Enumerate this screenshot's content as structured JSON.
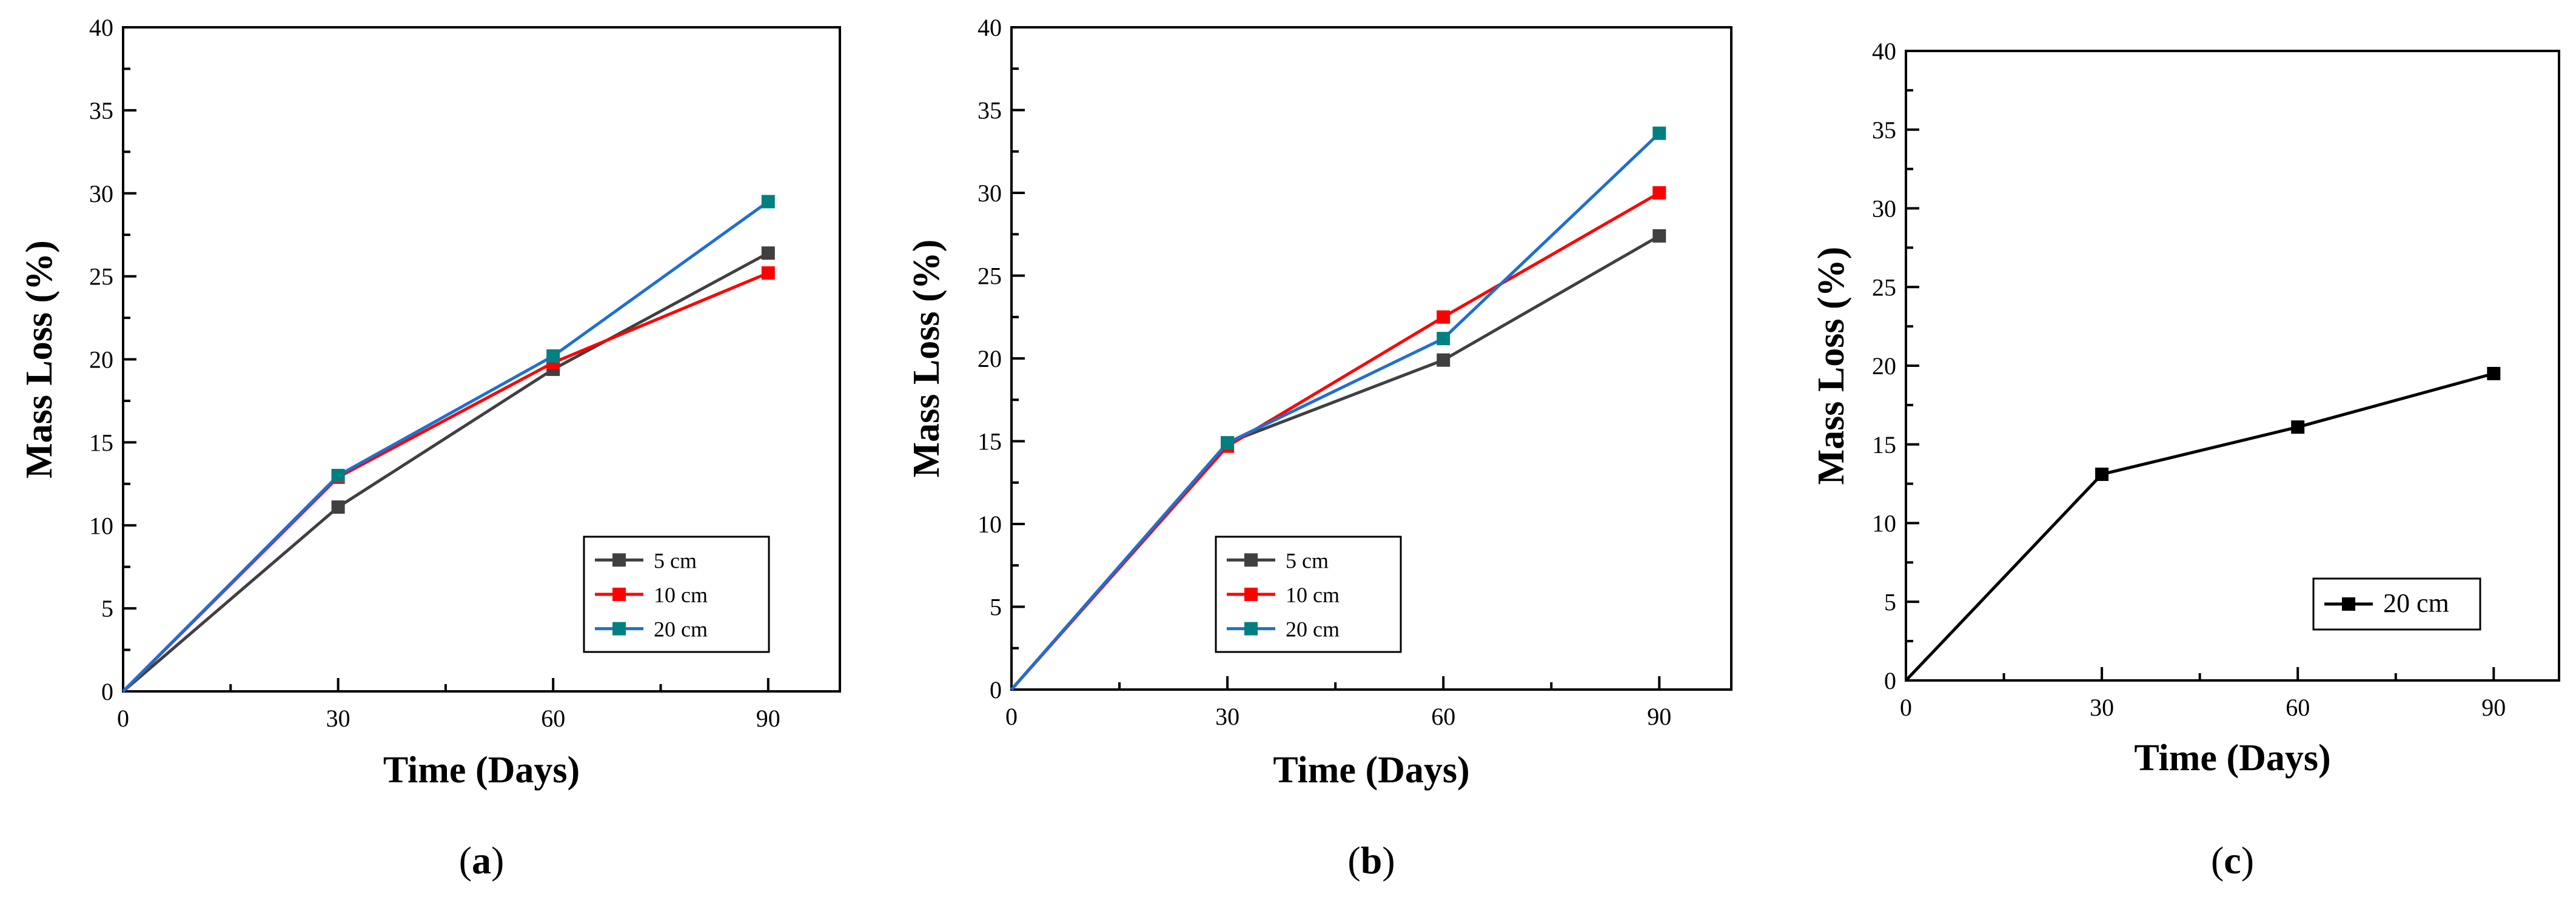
{
  "chart_data": [
    {
      "type": "line",
      "panel": "a",
      "caption": "(a)",
      "xlabel": "Time (Days)",
      "ylabel": "Mass Loss (%)",
      "xlim": [
        0,
        100
      ],
      "ylim": [
        0,
        40
      ],
      "xticks": [
        0,
        30,
        60,
        90
      ],
      "yticks": [
        0,
        5,
        10,
        15,
        20,
        25,
        30,
        35,
        40
      ],
      "legend_position": "bottom-right",
      "series": [
        {
          "name": "5 cm",
          "color": "#404040",
          "x": [
            0,
            30,
            60,
            90
          ],
          "values": [
            0,
            11.1,
            19.4,
            26.4
          ]
        },
        {
          "name": "10 cm",
          "color": "#ff0000",
          "x": [
            0,
            30,
            60,
            90
          ],
          "values": [
            0,
            12.9,
            19.8,
            25.2
          ]
        },
        {
          "name": "20 cm",
          "color": "#008080",
          "line_color": "#1f6fd0",
          "x": [
            0,
            30,
            60,
            90
          ],
          "values": [
            0,
            13.0,
            20.2,
            29.5
          ]
        }
      ]
    },
    {
      "type": "line",
      "panel": "b",
      "caption": "(b)",
      "xlabel": "Time (Days)",
      "ylabel": "Mass Loss (%)",
      "xlim": [
        0,
        100
      ],
      "ylim": [
        0,
        40
      ],
      "xticks": [
        0,
        30,
        60,
        90
      ],
      "yticks": [
        0,
        5,
        10,
        15,
        20,
        25,
        30,
        35,
        40
      ],
      "legend_position": "bottom-center",
      "series": [
        {
          "name": "5 cm",
          "color": "#404040",
          "x": [
            0,
            30,
            60,
            90
          ],
          "values": [
            0,
            14.9,
            19.9,
            27.4
          ]
        },
        {
          "name": "10 cm",
          "color": "#ff0000",
          "x": [
            0,
            30,
            60,
            90
          ],
          "values": [
            0,
            14.7,
            22.5,
            30.0
          ]
        },
        {
          "name": "20 cm",
          "color": "#008080",
          "line_color": "#1f6fd0",
          "x": [
            0,
            30,
            60,
            90
          ],
          "values": [
            0,
            14.9,
            21.2,
            33.6
          ]
        }
      ]
    },
    {
      "type": "line",
      "panel": "c",
      "caption": "(c)",
      "xlabel": "Time (Days)",
      "ylabel": "Mass Loss (%)",
      "xlim": [
        0,
        100
      ],
      "ylim": [
        0,
        40
      ],
      "xticks": [
        0,
        30,
        60,
        90
      ],
      "yticks": [
        0,
        5,
        10,
        15,
        20,
        25,
        30,
        35,
        40
      ],
      "legend_position": "bottom-right",
      "series": [
        {
          "name": "20 cm",
          "color": "#000000",
          "x": [
            0,
            30,
            60,
            90
          ],
          "values": [
            0,
            13.1,
            16.1,
            19.5
          ]
        }
      ]
    }
  ]
}
